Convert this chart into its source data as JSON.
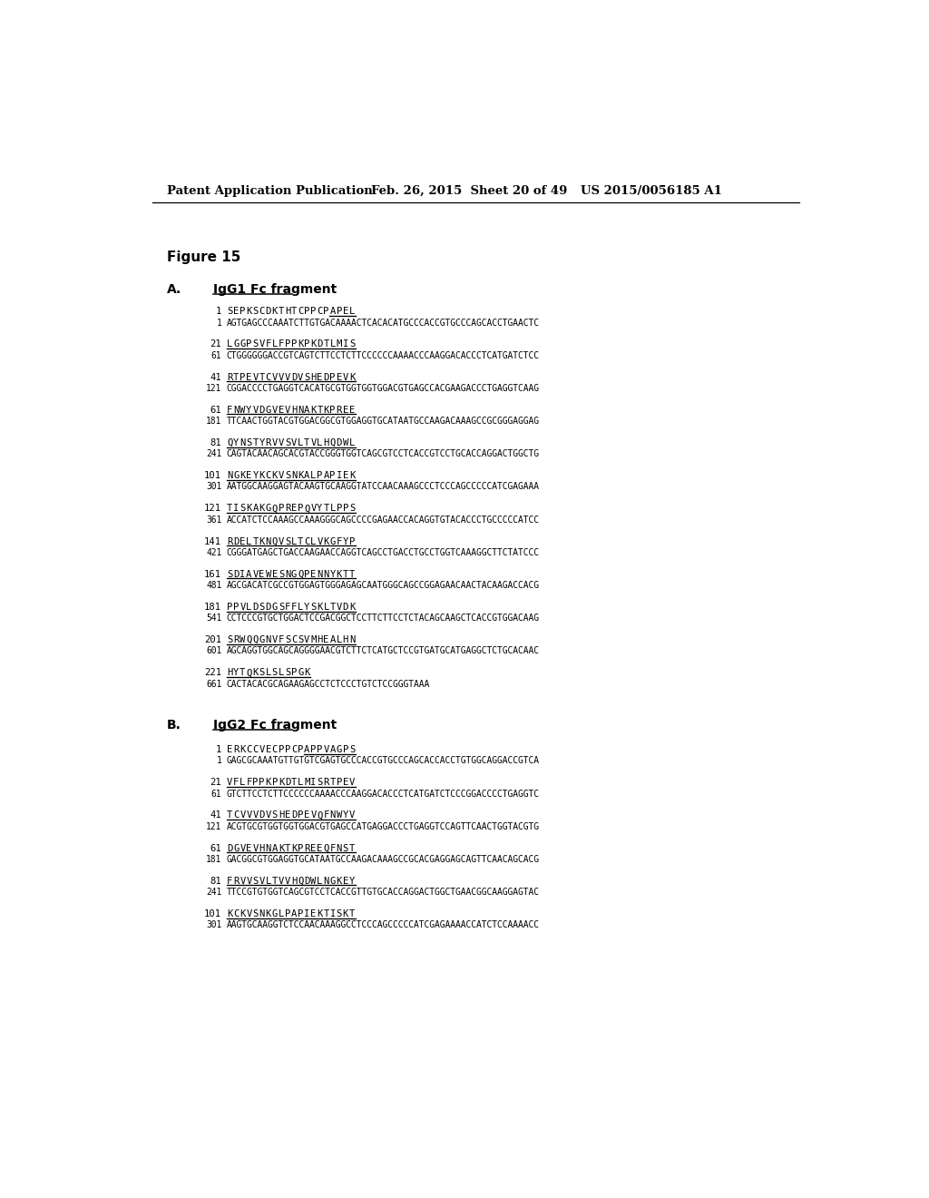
{
  "header_left": "Patent Application Publication",
  "header_mid": "Feb. 26, 2015  Sheet 20 of 49",
  "header_right": "US 2015/0056185 A1",
  "figure_label": "Figure 15",
  "section_A_label": "A.",
  "section_A_title": "IgG1 Fc fragment",
  "section_B_label": "B.",
  "section_B_title": "IgG2 Fc fragment",
  "lines_A": [
    {
      "num": "1",
      "aa": "S E P K S C D K T H T C P P C P A P E L",
      "ul_from": 16,
      "ul_to": 20,
      "nt_num": "1",
      "nt": "AGTGAGCCCAAATCTTGTGACAAAACTCACACATGCCCACCGTGCCCAGCACCTGAACTC"
    },
    {
      "num": "21",
      "aa": "L G G P S V F L F P P K P K D T L M I S",
      "ul_from": 0,
      "ul_to": 20,
      "nt_num": "61",
      "nt": "CTGGGGGGACCGTCAGTCTTCCTCTTCCCCCCAAAACCCAAGGACACCCTCATGATCTCC"
    },
    {
      "num": "41",
      "aa": "R T P E V T C V V V D V S H E D P E V K",
      "ul_from": 0,
      "ul_to": 20,
      "nt_num": "121",
      "nt": "CGGACCCCTGAGGTCACATGCGTGGTGGTGGACGTGAGCCACGAAGACCCTGAGGTCAAG"
    },
    {
      "num": "61",
      "aa": "F N W Y V D G V E V H N A K T K P R E E",
      "ul_from": 0,
      "ul_to": 20,
      "nt_num": "181",
      "nt": "TTCAACTGGTACGTGGACGGCGTGGAGGTGCATAATGCCAAGACAAAGCCGCGGGAGGAG"
    },
    {
      "num": "81",
      "aa": "Q Y N S T Y R V V S V L T V L H Q D W L",
      "ul_from": 0,
      "ul_to": 20,
      "nt_num": "241",
      "nt": "CAGTACAACAGCACGTACCGGGTGGTCAGCGTCCTCACCGTCCTGCACCAGGACTGGCTG"
    },
    {
      "num": "101",
      "aa": "N G K E Y K C K V S N K A L P A P I E K",
      "ul_from": 0,
      "ul_to": 20,
      "nt_num": "301",
      "nt": "AATGGCAAGGAGTACAAGTGCAAGGTATCCAACAAAGCCCTCCCAGCCCCCATCGAGAAA"
    },
    {
      "num": "121",
      "aa": "T I S K A K G Q P R E P Q V Y T L P P S",
      "ul_from": 0,
      "ul_to": 20,
      "nt_num": "361",
      "nt": "ACCATCTCCAAAGCCAAAGGGCAGCCCCGAGAACCACAGGTGTACACCCTGCCCCCATCC"
    },
    {
      "num": "141",
      "aa": "R D E L T K N Q V S L T C L V K G F Y P",
      "ul_from": 0,
      "ul_to": 20,
      "nt_num": "421",
      "nt": "CGGGATGAGCTGACCAAGAACCAGGTCAGCCTGACCTGCCTGGTCAAAGGCTTCTATCCC"
    },
    {
      "num": "161",
      "aa": "S D I A V E W E S N G Q P E N N Y K T T",
      "ul_from": 0,
      "ul_to": 20,
      "nt_num": "481",
      "nt": "AGCGACATCGCCGTGGAGTGGGAGAGCAATGGGCAGCCGGAGAACAACTACAAGACCACG"
    },
    {
      "num": "181",
      "aa": "P P V L D S D G S F F L Y S K L T V D K",
      "ul_from": 0,
      "ul_to": 20,
      "nt_num": "541",
      "nt": "CCTCCCGTGCTGGACTCCGACGGCTCCTTCTTCCTCTACAGCAAGCTCACCGTGGACAAG"
    },
    {
      "num": "201",
      "aa": "S R W Q Q G N V F S C S V M H E A L H N",
      "ul_from": 0,
      "ul_to": 20,
      "nt_num": "601",
      "nt": "AGCAGGTGGCAGCAGGGGAACGTCTTCTCATGCTCCGTGATGCATGAGGCTCTGCACAAC"
    },
    {
      "num": "221",
      "aa": "H Y T Q K S L S L S P G K",
      "ul_from": 0,
      "ul_to": 13,
      "nt_num": "661",
      "nt": "CACTACACGCAGAAGAGCCTCTCCCTGTCTCCGGGTAAA"
    }
  ],
  "lines_B": [
    {
      "num": "1",
      "aa": "E R K C C V E C P P C P A P P V A G P S",
      "ul_from": 12,
      "ul_to": 20,
      "nt_num": "1",
      "nt": "GAGCGCAAATGTTGTGTCGAGTGCCCACCGTGCCCAGCACCACCTGTGGCAGGACCGTCA"
    },
    {
      "num": "21",
      "aa": "V F L F P P K P K D T L M I S R T P E V",
      "ul_from": 0,
      "ul_to": 20,
      "nt_num": "61",
      "nt": "GTCTTCCTCTTCCCCCCAAAACCCAAGGACACCCTCATGATCTCCCGGACCCCTGAGGTC"
    },
    {
      "num": "41",
      "aa": "T C V V V D V S H E D P E V Q F N W Y V",
      "ul_from": 0,
      "ul_to": 20,
      "nt_num": "121",
      "nt": "ACGTGCGTGGTGGTGGACGTGAGCCATGAGGACCCTGAGGTCCAGTTCAACTGGTACGTG"
    },
    {
      "num": "61",
      "aa": "D G V E V H N A K T K P R E E Q F N S T",
      "ul_from": 0,
      "ul_to": 20,
      "nt_num": "181",
      "nt": "GACGGCGTGGAGGTGCATAATGCCAAGACAAAGCCGCACGAGGAGCAGTTCAACAGCACG"
    },
    {
      "num": "81",
      "aa": "F R V V S V L T V V H Q D W L N G K E Y",
      "ul_from": 0,
      "ul_to": 20,
      "nt_num": "241",
      "nt": "TTCCGTGTGGTCAGCGTCCTCACCGTTGTGCACCAGGACTGGCTGAACGGCAAGGAGTAC"
    },
    {
      "num": "101",
      "aa": "K C K V S N K G L P A P I E K T I S K T",
      "ul_from": 0,
      "ul_to": 20,
      "nt_num": "301",
      "nt": "AAGTGCAAGGTCTCCAACAAAGGCCTCCCAGCCCCCATCGAGAAAACCATCTCCAAAACC"
    }
  ]
}
